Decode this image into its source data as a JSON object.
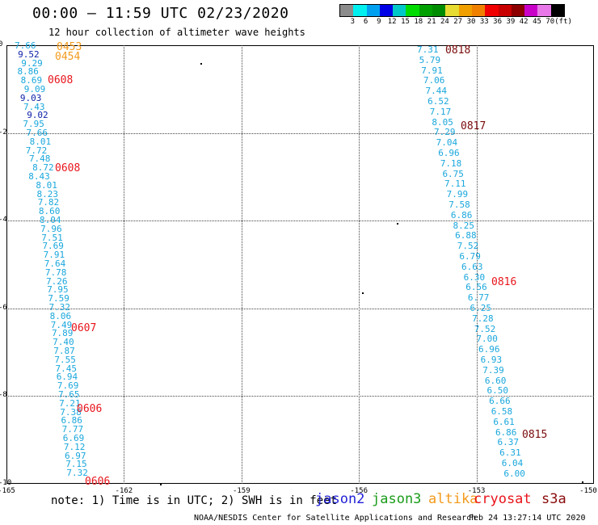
{
  "header": {
    "title": "00:00 — 11:59 UTC 02/23/2020",
    "subtitle": "12 hour collection of altimeter wave heights"
  },
  "colorbar": {
    "colors": [
      "#8c8c8c",
      "#00f0f0",
      "#00a0f0",
      "#0000e6",
      "#00c8c8",
      "#00dc00",
      "#00a000",
      "#008c00",
      "#e6dc32",
      "#f0a000",
      "#f08000",
      "#f00000",
      "#c80000",
      "#8c0000",
      "#c800c8",
      "#e878e8",
      "#000000"
    ],
    "labels": [
      "3",
      "6",
      "9",
      "12",
      "15",
      "18",
      "21",
      "24",
      "27",
      "30",
      "33",
      "36",
      "39",
      "42",
      "45",
      "70",
      "(ft)"
    ]
  },
  "map": {
    "lon_ticks": [
      "-165",
      "-162",
      "-159",
      "-156",
      "-153",
      "-150"
    ],
    "lat_ticks": [
      "0",
      "-2",
      "-4",
      "-6",
      "-8",
      "-10"
    ],
    "swh_track1": [
      "7.66",
      "9.52",
      "9.29",
      "8.86",
      "8.69",
      "9.09",
      "9.03",
      "7.43",
      "9.02",
      "7.95",
      "7.66",
      "8.01",
      "7.72",
      "7.48",
      "8.72",
      "8.43",
      "8.01",
      "8.23",
      "7.82",
      "8.60",
      "8.04",
      "7.96",
      "7.51",
      "7.69",
      "7.91",
      "7.64",
      "7.78",
      "7.26",
      "7.95",
      "7.59",
      "7.32",
      "8.06",
      "7.49",
      "7.89",
      "7.40",
      "7.87",
      "7.55",
      "7.45",
      "6.94",
      "7.69",
      "7.65",
      "7.21",
      "7.38",
      "6.86",
      "7.77",
      "6.69",
      "7.12",
      "6.97",
      "7.15",
      "7.32"
    ],
    "swh_track1_dark": [
      "9.52",
      "9.03",
      "9.02"
    ],
    "swh_track2": [
      "7.31",
      "5.79",
      "7.91",
      "7.06",
      "7.44",
      "6.52",
      "7.17",
      "8.05",
      "7.29",
      "7.04",
      "6.96",
      "7.18",
      "6.75",
      "7.11",
      "7.99",
      "7.58",
      "6.86",
      "8.25",
      "6.88",
      "7.52",
      "6.79",
      "6.63",
      "6.30",
      "6.56",
      "6.77",
      "6.25",
      "7.28",
      "7.52",
      "7.00",
      "6.96",
      "6.93",
      "7.39",
      "6.60",
      "6.50",
      "6.66",
      "6.58",
      "6.61",
      "6.86",
      "6.37",
      "6.31",
      "6.04",
      "6.00"
    ],
    "times": [
      {
        "text": "0453",
        "color": "orange"
      },
      {
        "text": "0454",
        "color": "orange"
      },
      {
        "text": "0608",
        "color": "red"
      },
      {
        "text": "0608",
        "color": "red"
      },
      {
        "text": "0607",
        "color": "red"
      },
      {
        "text": "0606",
        "color": "red"
      },
      {
        "text": "0606",
        "color": "red"
      },
      {
        "text": "0818",
        "color": "maroon"
      },
      {
        "text": "0817",
        "color": "maroon"
      },
      {
        "text": "0816",
        "color": "red"
      },
      {
        "text": "0815",
        "color": "maroon"
      }
    ]
  },
  "note": "note:  1) Time is in UTC;  2) SWH is in feet",
  "legend": [
    {
      "name": "jason2",
      "color": "#1f1fd8"
    },
    {
      "name": "jason3",
      "color": "#1a9c1a"
    },
    {
      "name": "altika",
      "color": "#f39a1b"
    },
    {
      "name": "cryosat",
      "color": "#e8141b"
    },
    {
      "name": "s3a",
      "color": "#8a0a0a"
    }
  ],
  "footer": "NOAA/NESDIS Center for Satellite Applications and Research",
  "footer_date": "Feb 24 13:27:14 UTC 2020"
}
